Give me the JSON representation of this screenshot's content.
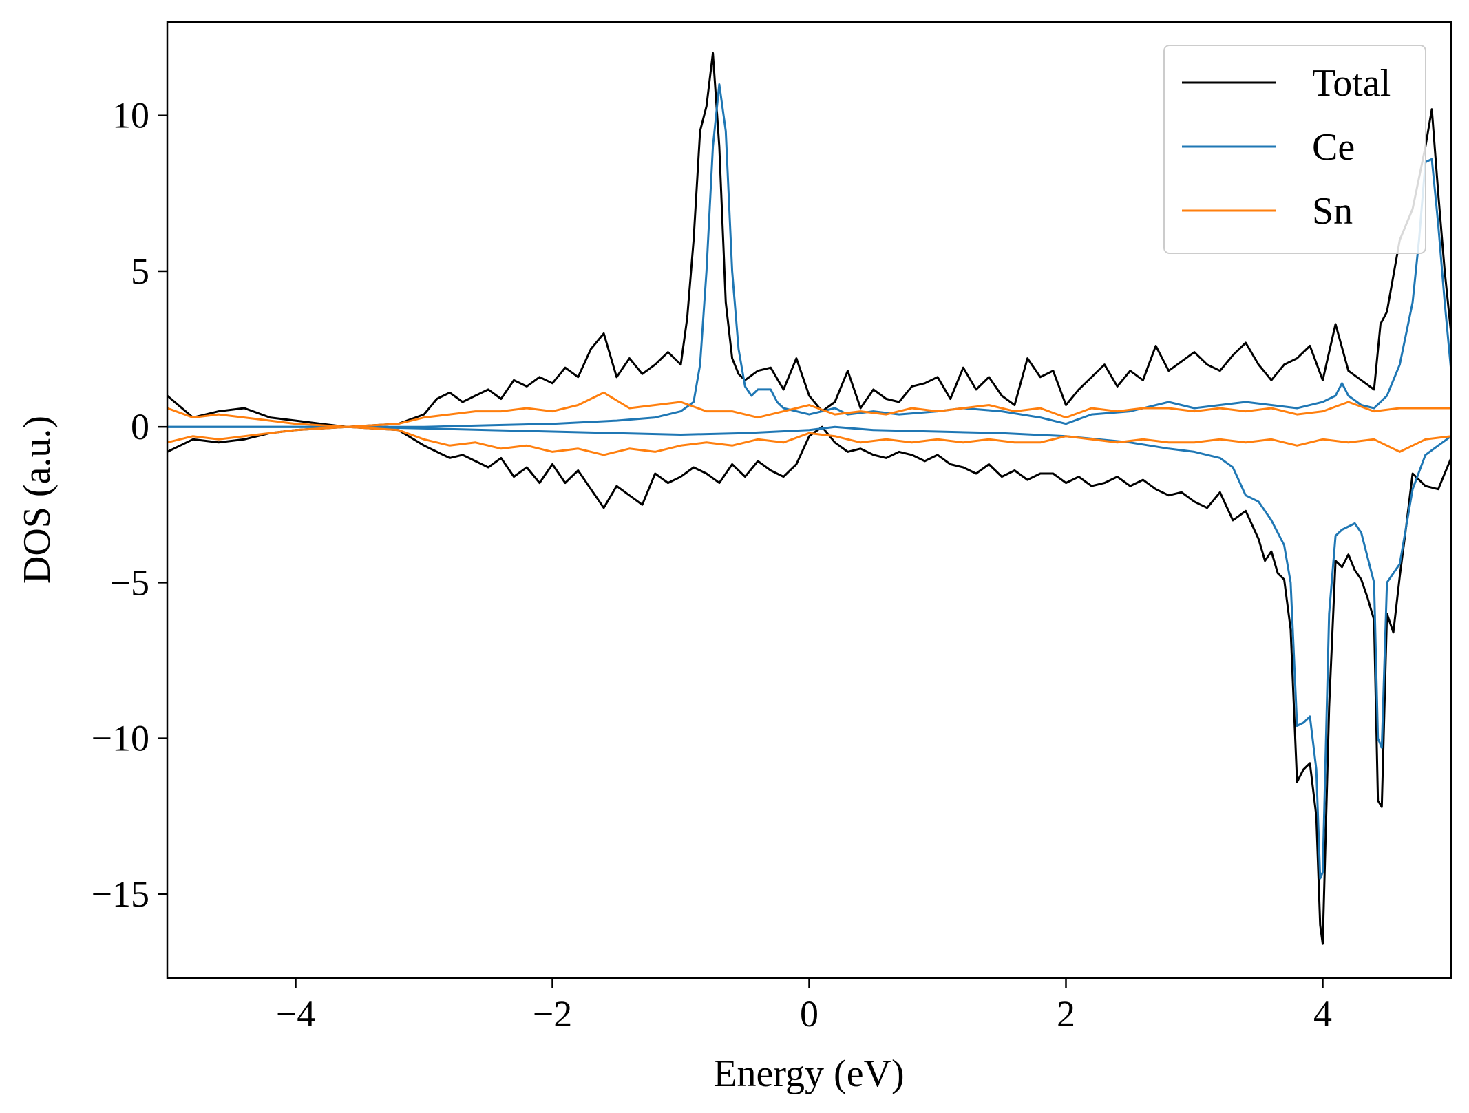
{
  "chart_data": {
    "type": "line",
    "title": "",
    "xlabel": "Energy (eV)",
    "ylabel": "DOS (a.u.)",
    "xlim": [
      -5,
      5
    ],
    "ylim": [
      -17.7,
      13
    ],
    "xticks": [
      -4,
      -2,
      0,
      2,
      4
    ],
    "xtick_labels": [
      "−4",
      "−2",
      "0",
      "2",
      "4"
    ],
    "yticks": [
      10,
      5,
      0,
      -5,
      -10,
      -15
    ],
    "ytick_labels": [
      "10",
      "5",
      "0",
      "−5",
      "−10",
      "−15"
    ],
    "grid": false,
    "legend_position": "top-right",
    "series": [
      {
        "name": "Total",
        "color": "#000000",
        "channel": "up",
        "x": [
          -5.0,
          -4.8,
          -4.6,
          -4.4,
          -4.2,
          -4.0,
          -3.8,
          -3.6,
          -3.4,
          -3.2,
          -3.0,
          -2.9,
          -2.8,
          -2.7,
          -2.6,
          -2.5,
          -2.4,
          -2.3,
          -2.2,
          -2.1,
          -2.0,
          -1.9,
          -1.8,
          -1.7,
          -1.6,
          -1.5,
          -1.4,
          -1.3,
          -1.2,
          -1.1,
          -1.0,
          -0.95,
          -0.9,
          -0.85,
          -0.8,
          -0.75,
          -0.7,
          -0.65,
          -0.6,
          -0.55,
          -0.5,
          -0.4,
          -0.3,
          -0.2,
          -0.1,
          0.0,
          0.1,
          0.2,
          0.3,
          0.4,
          0.5,
          0.6,
          0.7,
          0.8,
          0.9,
          1.0,
          1.1,
          1.2,
          1.3,
          1.4,
          1.5,
          1.6,
          1.7,
          1.8,
          1.9,
          2.0,
          2.1,
          2.2,
          2.3,
          2.4,
          2.5,
          2.6,
          2.7,
          2.8,
          2.9,
          3.0,
          3.1,
          3.2,
          3.3,
          3.4,
          3.5,
          3.6,
          3.7,
          3.8,
          3.9,
          4.0,
          4.1,
          4.2,
          4.3,
          4.4,
          4.45,
          4.5,
          4.6,
          4.7,
          4.8,
          4.85,
          4.9,
          4.95,
          5.0
        ],
        "y": [
          1.0,
          0.3,
          0.5,
          0.6,
          0.3,
          0.2,
          0.1,
          0.0,
          0.05,
          0.1,
          0.4,
          0.9,
          1.1,
          0.8,
          1.0,
          1.2,
          0.9,
          1.5,
          1.3,
          1.6,
          1.4,
          1.9,
          1.6,
          2.5,
          3.0,
          1.6,
          2.2,
          1.7,
          2.0,
          2.4,
          2.0,
          3.5,
          6.0,
          9.5,
          10.3,
          12.0,
          9.0,
          4.0,
          2.2,
          1.7,
          1.5,
          1.8,
          1.9,
          1.2,
          2.2,
          1.0,
          0.5,
          0.8,
          1.8,
          0.6,
          1.2,
          0.9,
          0.8,
          1.3,
          1.4,
          1.6,
          0.9,
          1.9,
          1.2,
          1.6,
          1.0,
          0.7,
          2.2,
          1.6,
          1.8,
          0.7,
          1.2,
          1.6,
          2.0,
          1.3,
          1.8,
          1.5,
          2.6,
          1.8,
          2.1,
          2.4,
          2.0,
          1.8,
          2.3,
          2.7,
          2.0,
          1.5,
          2.0,
          2.2,
          2.6,
          1.5,
          3.3,
          1.8,
          1.5,
          1.2,
          3.3,
          3.7,
          6.0,
          7.0,
          9.0,
          10.2,
          7.5,
          5.0,
          3.0
        ]
      },
      {
        "name": "Total",
        "color": "#000000",
        "channel": "down",
        "x": [
          -5.0,
          -4.8,
          -4.6,
          -4.4,
          -4.2,
          -4.0,
          -3.8,
          -3.6,
          -3.4,
          -3.2,
          -3.0,
          -2.9,
          -2.8,
          -2.7,
          -2.6,
          -2.5,
          -2.4,
          -2.3,
          -2.2,
          -2.1,
          -2.0,
          -1.9,
          -1.8,
          -1.7,
          -1.6,
          -1.5,
          -1.4,
          -1.3,
          -1.2,
          -1.1,
          -1.0,
          -0.9,
          -0.8,
          -0.7,
          -0.6,
          -0.5,
          -0.4,
          -0.3,
          -0.2,
          -0.1,
          0.0,
          0.1,
          0.2,
          0.3,
          0.4,
          0.5,
          0.6,
          0.7,
          0.8,
          0.9,
          1.0,
          1.1,
          1.2,
          1.3,
          1.4,
          1.5,
          1.6,
          1.7,
          1.8,
          1.9,
          2.0,
          2.1,
          2.2,
          2.3,
          2.4,
          2.5,
          2.6,
          2.7,
          2.8,
          2.9,
          3.0,
          3.1,
          3.2,
          3.3,
          3.4,
          3.5,
          3.55,
          3.6,
          3.65,
          3.7,
          3.75,
          3.8,
          3.85,
          3.9,
          3.95,
          3.98,
          4.0,
          4.05,
          4.1,
          4.15,
          4.2,
          4.25,
          4.3,
          4.35,
          4.4,
          4.43,
          4.46,
          4.5,
          4.55,
          4.6,
          4.65,
          4.7,
          4.8,
          4.9,
          5.0
        ],
        "y": [
          -0.8,
          -0.4,
          -0.5,
          -0.4,
          -0.2,
          -0.1,
          -0.05,
          0.0,
          -0.05,
          -0.1,
          -0.6,
          -0.8,
          -1.0,
          -0.9,
          -1.1,
          -1.3,
          -1.0,
          -1.6,
          -1.3,
          -1.8,
          -1.2,
          -1.8,
          -1.4,
          -2.0,
          -2.6,
          -1.9,
          -2.2,
          -2.5,
          -1.5,
          -1.8,
          -1.6,
          -1.3,
          -1.5,
          -1.8,
          -1.2,
          -1.6,
          -1.1,
          -1.4,
          -1.6,
          -1.2,
          -0.3,
          0.0,
          -0.5,
          -0.8,
          -0.7,
          -0.9,
          -1.0,
          -0.8,
          -0.9,
          -1.1,
          -0.9,
          -1.2,
          -1.3,
          -1.5,
          -1.2,
          -1.6,
          -1.4,
          -1.7,
          -1.5,
          -1.5,
          -1.8,
          -1.6,
          -1.9,
          -1.8,
          -1.6,
          -1.9,
          -1.7,
          -2.0,
          -2.2,
          -2.1,
          -2.4,
          -2.6,
          -2.1,
          -3.0,
          -2.7,
          -3.6,
          -4.3,
          -4.0,
          -4.7,
          -4.9,
          -6.5,
          -11.4,
          -11.0,
          -10.8,
          -12.5,
          -16.0,
          -16.6,
          -9.0,
          -4.3,
          -4.5,
          -4.1,
          -4.6,
          -4.9,
          -5.5,
          -6.2,
          -12.0,
          -12.2,
          -6.0,
          -6.6,
          -4.8,
          -3.2,
          -1.5,
          -1.9,
          -2.0,
          -1.0
        ]
      },
      {
        "name": "Ce",
        "color": "#1f77b4",
        "channel": "up",
        "x": [
          -5.0,
          -4.5,
          -4.0,
          -3.5,
          -3.0,
          -2.5,
          -2.0,
          -1.5,
          -1.2,
          -1.0,
          -0.9,
          -0.85,
          -0.8,
          -0.75,
          -0.7,
          -0.65,
          -0.6,
          -0.55,
          -0.5,
          -0.45,
          -0.4,
          -0.3,
          -0.25,
          -0.2,
          -0.1,
          0.0,
          0.1,
          0.2,
          0.3,
          0.5,
          0.7,
          1.0,
          1.2,
          1.5,
          1.8,
          2.0,
          2.2,
          2.5,
          2.8,
          3.0,
          3.2,
          3.4,
          3.6,
          3.8,
          4.0,
          4.1,
          4.15,
          4.2,
          4.3,
          4.4,
          4.5,
          4.6,
          4.7,
          4.75,
          4.8,
          4.85,
          4.9,
          4.95,
          5.0
        ],
        "y": [
          0.0,
          0.0,
          0.0,
          0.0,
          0.0,
          0.05,
          0.1,
          0.2,
          0.3,
          0.5,
          0.8,
          2.0,
          5.0,
          9.0,
          11.0,
          9.5,
          5.0,
          2.5,
          1.3,
          1.0,
          1.2,
          1.2,
          0.8,
          0.6,
          0.5,
          0.4,
          0.5,
          0.6,
          0.4,
          0.5,
          0.4,
          0.5,
          0.6,
          0.5,
          0.3,
          0.1,
          0.4,
          0.5,
          0.8,
          0.6,
          0.7,
          0.8,
          0.7,
          0.6,
          0.8,
          1.0,
          1.4,
          1.0,
          0.7,
          0.6,
          1.0,
          2.0,
          4.0,
          6.0,
          8.5,
          8.6,
          6.5,
          4.0,
          1.8
        ]
      },
      {
        "name": "Ce",
        "color": "#1f77b4",
        "channel": "down",
        "x": [
          -5.0,
          -4.5,
          -4.0,
          -3.5,
          -3.0,
          -2.5,
          -2.0,
          -1.5,
          -1.0,
          -0.5,
          0.0,
          0.2,
          0.5,
          1.0,
          1.5,
          2.0,
          2.5,
          2.8,
          3.0,
          3.2,
          3.3,
          3.4,
          3.45,
          3.5,
          3.6,
          3.7,
          3.75,
          3.8,
          3.85,
          3.9,
          3.95,
          3.98,
          4.0,
          4.05,
          4.1,
          4.15,
          4.2,
          4.25,
          4.3,
          4.35,
          4.4,
          4.43,
          4.46,
          4.5,
          4.6,
          4.7,
          4.8,
          4.9,
          5.0
        ],
        "y": [
          0.0,
          0.0,
          0.0,
          0.0,
          -0.05,
          -0.1,
          -0.15,
          -0.2,
          -0.25,
          -0.2,
          -0.1,
          0.0,
          -0.1,
          -0.15,
          -0.2,
          -0.3,
          -0.5,
          -0.7,
          -0.8,
          -1.0,
          -1.3,
          -2.2,
          -2.3,
          -2.4,
          -3.0,
          -3.8,
          -5.0,
          -9.6,
          -9.5,
          -9.3,
          -11.0,
          -14.5,
          -14.3,
          -6.0,
          -3.5,
          -3.3,
          -3.2,
          -3.1,
          -3.4,
          -4.2,
          -5.0,
          -10.0,
          -10.3,
          -5.0,
          -4.4,
          -2.0,
          -0.9,
          -0.6,
          -0.3
        ]
      },
      {
        "name": "Sn",
        "color": "#ff7f0e",
        "channel": "up",
        "x": [
          -5.0,
          -4.8,
          -4.6,
          -4.4,
          -4.2,
          -4.0,
          -3.8,
          -3.6,
          -3.4,
          -3.2,
          -3.0,
          -2.8,
          -2.6,
          -2.4,
          -2.2,
          -2.0,
          -1.8,
          -1.6,
          -1.4,
          -1.2,
          -1.0,
          -0.8,
          -0.6,
          -0.4,
          -0.2,
          0.0,
          0.2,
          0.4,
          0.6,
          0.8,
          1.0,
          1.2,
          1.4,
          1.6,
          1.8,
          2.0,
          2.2,
          2.4,
          2.6,
          2.8,
          3.0,
          3.2,
          3.4,
          3.6,
          3.8,
          4.0,
          4.2,
          4.4,
          4.6,
          4.8,
          5.0
        ],
        "y": [
          0.6,
          0.3,
          0.4,
          0.3,
          0.2,
          0.1,
          0.05,
          0.0,
          0.05,
          0.1,
          0.3,
          0.4,
          0.5,
          0.5,
          0.6,
          0.5,
          0.7,
          1.1,
          0.6,
          0.7,
          0.8,
          0.5,
          0.5,
          0.3,
          0.5,
          0.7,
          0.4,
          0.5,
          0.4,
          0.6,
          0.5,
          0.6,
          0.7,
          0.5,
          0.6,
          0.3,
          0.6,
          0.5,
          0.6,
          0.6,
          0.5,
          0.6,
          0.5,
          0.6,
          0.4,
          0.5,
          0.8,
          0.5,
          0.6,
          0.6,
          0.6
        ]
      },
      {
        "name": "Sn",
        "color": "#ff7f0e",
        "channel": "down",
        "x": [
          -5.0,
          -4.8,
          -4.6,
          -4.4,
          -4.2,
          -4.0,
          -3.8,
          -3.6,
          -3.4,
          -3.2,
          -3.0,
          -2.8,
          -2.6,
          -2.4,
          -2.2,
          -2.0,
          -1.8,
          -1.6,
          -1.4,
          -1.2,
          -1.0,
          -0.8,
          -0.6,
          -0.4,
          -0.2,
          0.0,
          0.2,
          0.4,
          0.6,
          0.8,
          1.0,
          1.2,
          1.4,
          1.6,
          1.8,
          2.0,
          2.2,
          2.4,
          2.6,
          2.8,
          3.0,
          3.2,
          3.4,
          3.6,
          3.8,
          4.0,
          4.2,
          4.4,
          4.6,
          4.8,
          5.0
        ],
        "y": [
          -0.5,
          -0.3,
          -0.4,
          -0.3,
          -0.2,
          -0.1,
          -0.05,
          0.0,
          -0.05,
          -0.1,
          -0.4,
          -0.6,
          -0.5,
          -0.7,
          -0.6,
          -0.8,
          -0.7,
          -0.9,
          -0.7,
          -0.8,
          -0.6,
          -0.5,
          -0.6,
          -0.4,
          -0.5,
          -0.2,
          -0.3,
          -0.5,
          -0.4,
          -0.5,
          -0.4,
          -0.5,
          -0.4,
          -0.5,
          -0.5,
          -0.3,
          -0.4,
          -0.5,
          -0.4,
          -0.5,
          -0.5,
          -0.4,
          -0.5,
          -0.4,
          -0.6,
          -0.4,
          -0.5,
          -0.4,
          -0.8,
          -0.4,
          -0.3
        ]
      }
    ],
    "legend": [
      {
        "label": "Total",
        "color": "#000000"
      },
      {
        "label": "Ce",
        "color": "#1f77b4"
      },
      {
        "label": "Sn",
        "color": "#ff7f0e"
      }
    ]
  }
}
